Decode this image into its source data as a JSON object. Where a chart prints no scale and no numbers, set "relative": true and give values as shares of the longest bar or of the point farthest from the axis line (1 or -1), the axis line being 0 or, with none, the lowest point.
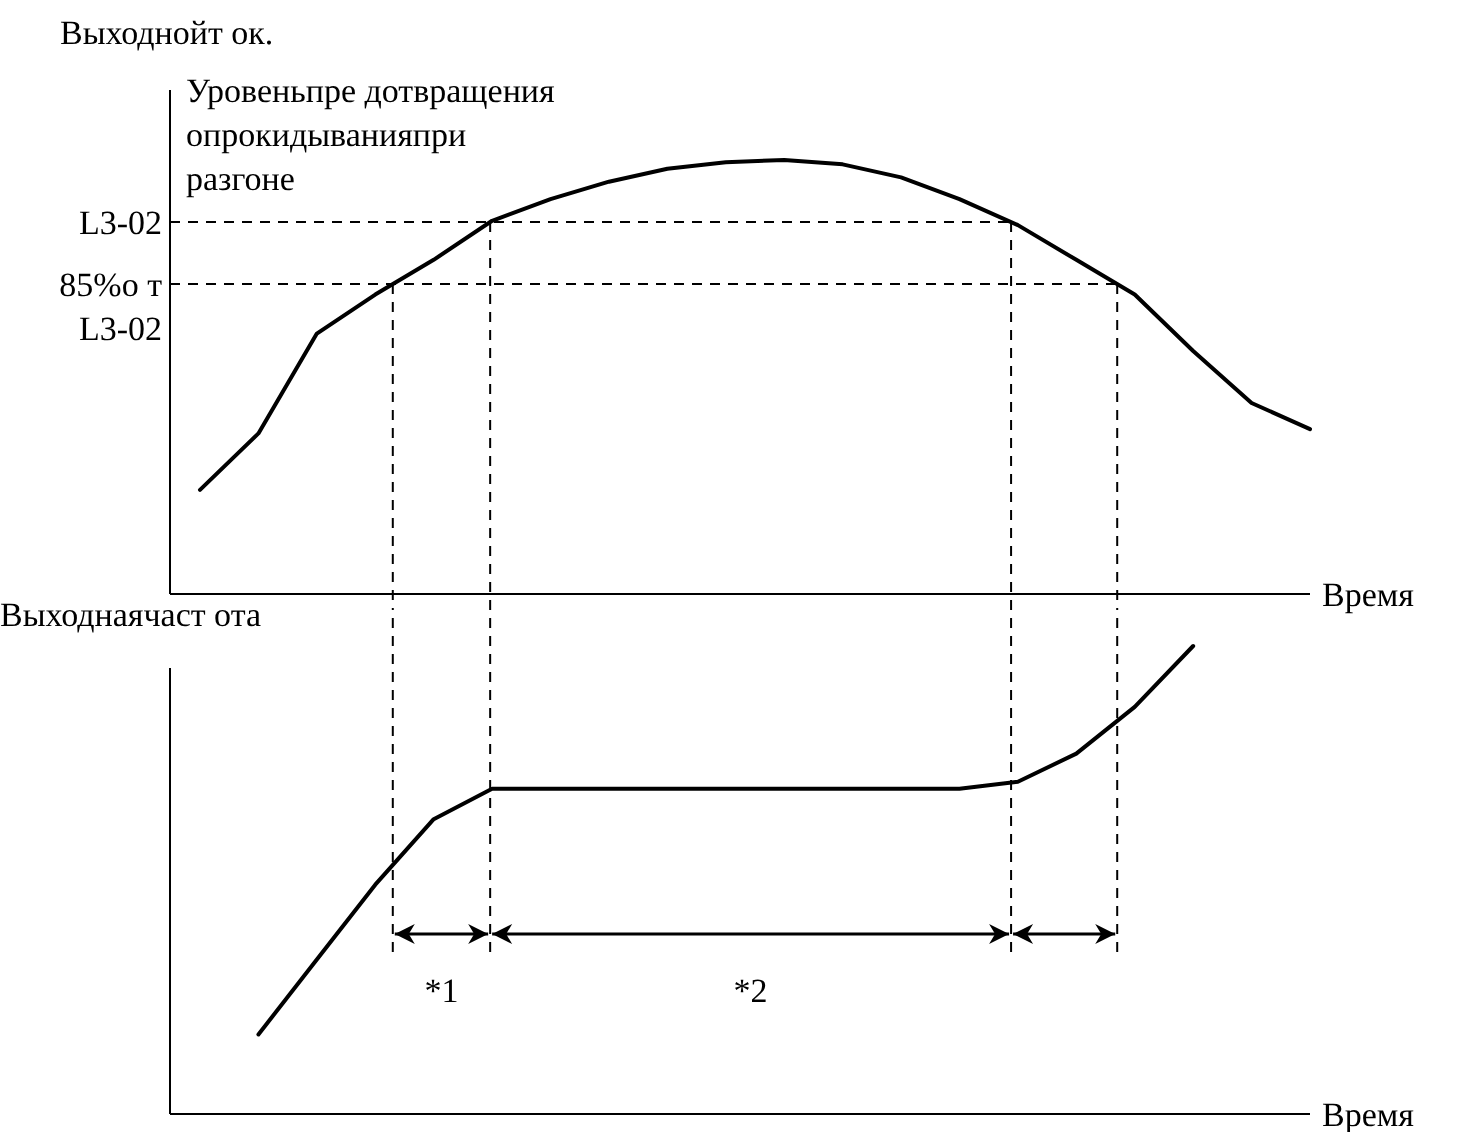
{
  "chart_data": [
    {
      "type": "line",
      "relative": true,
      "ylabel": "Выходнойт ок.",
      "xlabel": "Время",
      "marker": "none",
      "line_style": "solid",
      "categories": [
        null,
        null,
        null,
        null,
        null,
        null,
        null,
        null,
        null,
        null,
        null,
        null,
        null,
        null,
        null,
        null,
        null,
        null,
        null,
        null
      ],
      "annotations": [
        "Уровеньпре дотвращения\nопрокидыванияпри\nразгоне"
      ],
      "series": [
        {
          "color": "#000000",
          "values": [
            0.24,
            0.37,
            0.6,
            0.69,
            0.77,
            0.86,
            0.91,
            0.95,
            0.98,
            0.995,
            1,
            0.99,
            0.96,
            0.91,
            0.85,
            0.77,
            0.69,
            0.56,
            0.44,
            0.38
          ]
        }
      ],
      "ref_lines": [
        {
          "axis": "y",
          "value": 0.857,
          "label": "L3-02",
          "line_style": "dashed"
        },
        {
          "axis": "y",
          "value": 0.714,
          "label": "85%о т\nL3-02",
          "line_style": "dashed"
        }
      ]
    },
    {
      "type": "line",
      "relative": true,
      "ylabel": "Выходнаячаст ота",
      "xlabel": "Время",
      "marker": "none",
      "line_style": "solid",
      "categories": [
        null,
        null,
        null,
        null,
        null,
        null,
        null,
        null,
        null,
        null,
        null,
        null,
        null,
        null,
        null,
        null,
        null,
        null,
        null,
        null
      ],
      "annotations": [
        "*1",
        "*2"
      ],
      "series": [
        {
          "color": "#000000",
          "values": [
            null,
            0.17,
            0.33,
            0.49,
            0.63,
            0.695,
            0.695,
            0.695,
            0.695,
            0.695,
            0.695,
            0.695,
            0.695,
            0.695,
            0.71,
            0.77,
            0.87,
            1,
            null,
            null
          ]
        }
      ]
    }
  ]
}
